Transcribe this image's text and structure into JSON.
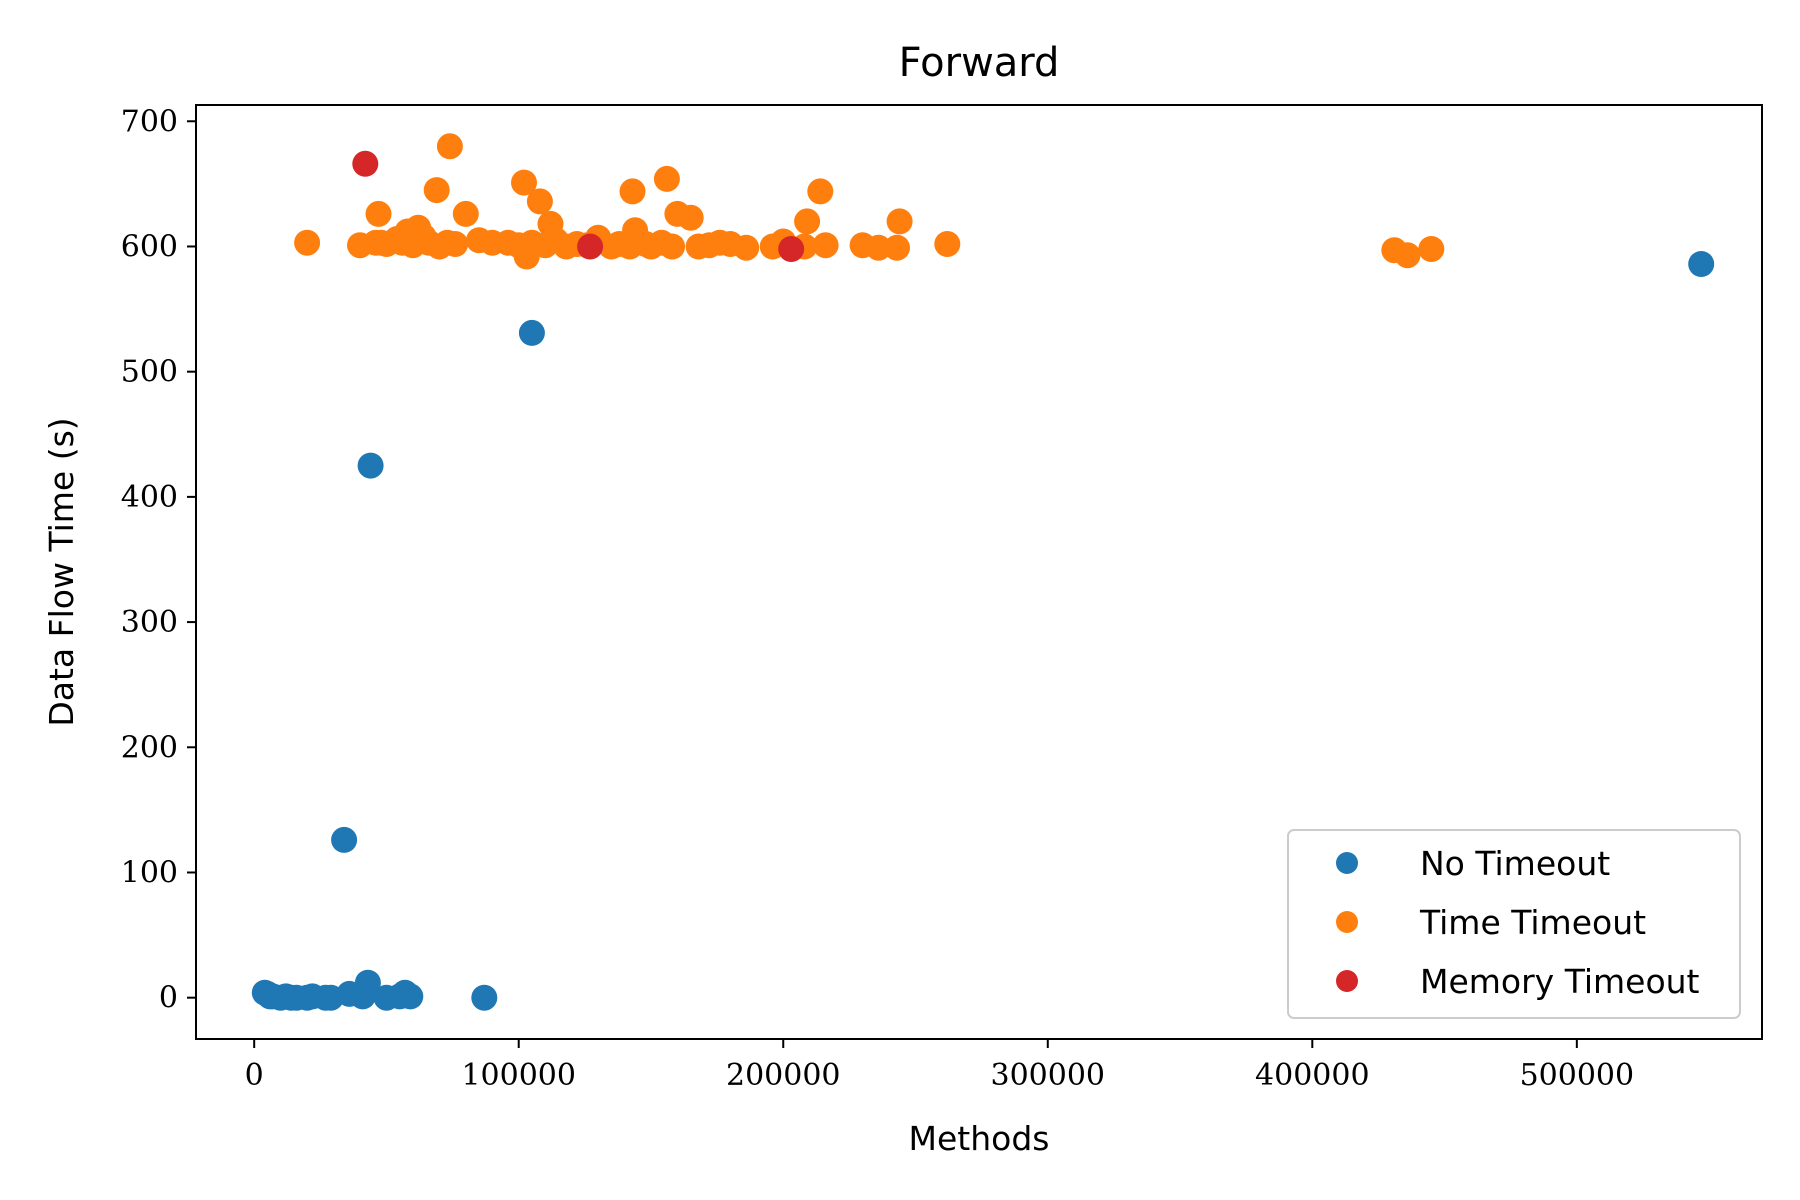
{
  "chart_data": {
    "type": "scatter",
    "title": "Forward",
    "xlabel": "Methods",
    "ylabel": "Data Flow Time (s)",
    "xlim": [
      -22000,
      570000
    ],
    "ylim": [
      -33,
      713
    ],
    "xticks": [
      0,
      100000,
      200000,
      300000,
      400000,
      500000
    ],
    "xtick_labels": [
      "0",
      "100000",
      "200000",
      "300000",
      "400000",
      "500000"
    ],
    "yticks": [
      0,
      100,
      200,
      300,
      400,
      500,
      600,
      700
    ],
    "ytick_labels": [
      "0",
      "100",
      "200",
      "300",
      "400",
      "500",
      "600",
      "700"
    ],
    "grid": false,
    "legend_position": "bottom-right",
    "series": [
      {
        "name": "No Timeout",
        "color": "#1f77b4",
        "points": [
          [
            4000,
            4
          ],
          [
            5000,
            3
          ],
          [
            6000,
            1
          ],
          [
            7000,
            1
          ],
          [
            10000,
            0
          ],
          [
            12000,
            1
          ],
          [
            14000,
            0
          ],
          [
            16000,
            0
          ],
          [
            20000,
            0
          ],
          [
            22000,
            1
          ],
          [
            27000,
            0
          ],
          [
            29000,
            0
          ],
          [
            36000,
            3
          ],
          [
            41000,
            1
          ],
          [
            43000,
            12
          ],
          [
            50000,
            0
          ],
          [
            55000,
            1
          ],
          [
            57000,
            4
          ],
          [
            59000,
            1
          ],
          [
            87000,
            0
          ],
          [
            34000,
            126
          ],
          [
            44000,
            425
          ],
          [
            105000,
            531
          ],
          [
            547000,
            586
          ]
        ]
      },
      {
        "name": "Time Timeout",
        "color": "#ff7f0e",
        "points": [
          [
            20000,
            603
          ],
          [
            40000,
            601
          ],
          [
            46000,
            603
          ],
          [
            47000,
            626
          ],
          [
            48000,
            603
          ],
          [
            50000,
            602
          ],
          [
            54000,
            606
          ],
          [
            56000,
            603
          ],
          [
            58000,
            612
          ],
          [
            60000,
            601
          ],
          [
            62000,
            615
          ],
          [
            64000,
            608
          ],
          [
            66000,
            603
          ],
          [
            69000,
            645
          ],
          [
            70000,
            600
          ],
          [
            73000,
            603
          ],
          [
            74000,
            680
          ],
          [
            76000,
            602
          ],
          [
            80000,
            626
          ],
          [
            85000,
            605
          ],
          [
            90000,
            603
          ],
          [
            96000,
            603
          ],
          [
            100000,
            601
          ],
          [
            102000,
            651
          ],
          [
            103000,
            592
          ],
          [
            105000,
            603
          ],
          [
            108000,
            636
          ],
          [
            110000,
            601
          ],
          [
            112000,
            618
          ],
          [
            114000,
            605
          ],
          [
            118000,
            600
          ],
          [
            122000,
            602
          ],
          [
            126000,
            601
          ],
          [
            130000,
            607
          ],
          [
            135000,
            600
          ],
          [
            138000,
            602
          ],
          [
            142000,
            600
          ],
          [
            143000,
            644
          ],
          [
            144000,
            613
          ],
          [
            148000,
            602
          ],
          [
            150000,
            600
          ],
          [
            154000,
            603
          ],
          [
            156000,
            654
          ],
          [
            158000,
            600
          ],
          [
            160000,
            626
          ],
          [
            165000,
            623
          ],
          [
            168000,
            600
          ],
          [
            172000,
            601
          ],
          [
            176000,
            603
          ],
          [
            180000,
            602
          ],
          [
            186000,
            599
          ],
          [
            196000,
            600
          ],
          [
            200000,
            604
          ],
          [
            208000,
            600
          ],
          [
            209000,
            620
          ],
          [
            214000,
            644
          ],
          [
            216000,
            601
          ],
          [
            230000,
            601
          ],
          [
            236000,
            599
          ],
          [
            243000,
            599
          ],
          [
            244000,
            620
          ],
          [
            262000,
            602
          ],
          [
            431000,
            597
          ],
          [
            436000,
            593
          ],
          [
            445000,
            598
          ]
        ]
      },
      {
        "name": "Memory Timeout",
        "color": "#d62728",
        "points": [
          [
            42000,
            666
          ],
          [
            127000,
            600
          ],
          [
            203000,
            598
          ]
        ]
      }
    ]
  }
}
